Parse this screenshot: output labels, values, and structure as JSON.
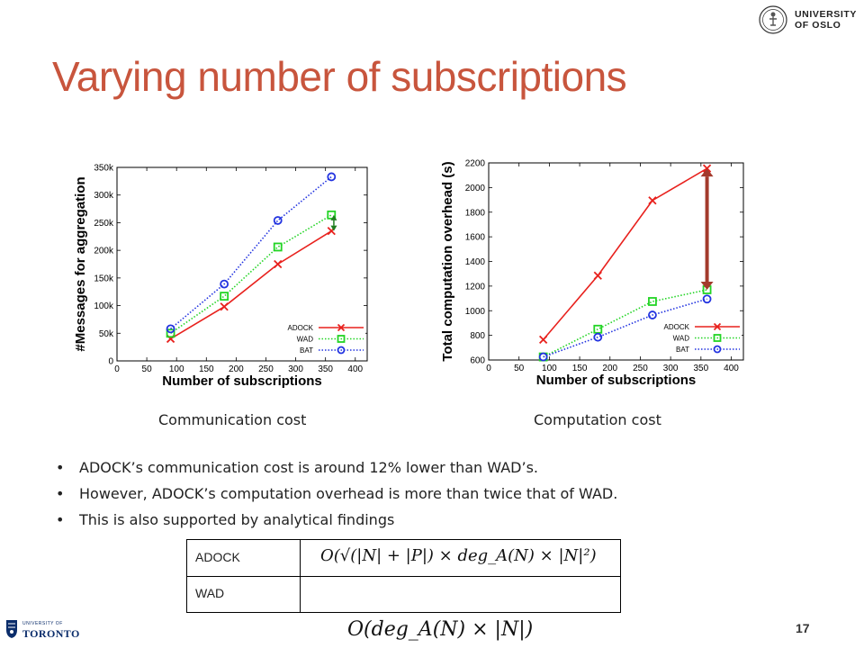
{
  "title": "Varying number of subscriptions",
  "oslo_logo": {
    "line1": "UNIVERSITY",
    "line2": "OF OSLO"
  },
  "toronto_logo": {
    "small": "UNIVERSITY OF",
    "big": "TORONTO"
  },
  "page_number": "17",
  "captions": {
    "communication": "Communication cost",
    "computation": "Computation cost"
  },
  "bullets": [
    "ADOCK’s communication cost is around 12% lower than WAD’s.",
    "However, ADOCK’s computation overhead is more than twice that of WAD.",
    "This is also supported by analytical findings"
  ],
  "formula_table": {
    "rows": [
      {
        "label": "ADOCK",
        "formula": "O(√(|N| + |P|) × deg_A(N) × |N|²)"
      },
      {
        "label": "WAD",
        "formula": "O(deg_A(N) × |N|)"
      }
    ]
  },
  "chart_data": [
    {
      "id": "communication",
      "type": "line",
      "xlabel": "Number of subscriptions",
      "ylabel": "#Messages for aggregation",
      "xlim": [
        0,
        420
      ],
      "ylim": [
        0,
        350000
      ],
      "xticks": [
        0,
        50,
        100,
        150,
        200,
        250,
        300,
        350,
        400
      ],
      "yticks": [
        0,
        50000,
        100000,
        150000,
        200000,
        250000,
        300000,
        350000
      ],
      "ytick_labels": [
        "0",
        "50k",
        "100k",
        "150k",
        "200k",
        "250k",
        "300k",
        "350k"
      ],
      "grid": false,
      "legend": "bottom-right",
      "series": [
        {
          "name": "ADOCK",
          "color": "#e8211d",
          "marker": "x",
          "dash": "solid",
          "x": [
            90,
            180,
            270,
            360
          ],
          "y": [
            40000,
            98000,
            175000,
            235000
          ]
        },
        {
          "name": "WAD",
          "color": "#22d424",
          "marker": "square",
          "dash": "dotted",
          "x": [
            90,
            180,
            270,
            360
          ],
          "y": [
            50000,
            117000,
            206000,
            264000
          ]
        },
        {
          "name": "BAT",
          "color": "#2233e0",
          "marker": "circle",
          "dash": "dotted",
          "x": [
            90,
            180,
            270,
            360
          ],
          "y": [
            58000,
            139000,
            254000,
            333000
          ]
        }
      ],
      "annotation": {
        "type": "double-arrow",
        "color": "#1e7d1e",
        "x": 364,
        "y_from": 235000,
        "y_to": 264000
      }
    },
    {
      "id": "computation",
      "type": "line",
      "xlabel": "Number of subscriptions",
      "ylabel": "Total computation overhead (s)",
      "xlim": [
        0,
        420
      ],
      "ylim": [
        600,
        2200
      ],
      "xticks": [
        0,
        50,
        100,
        150,
        200,
        250,
        300,
        350,
        400
      ],
      "yticks": [
        600,
        800,
        1000,
        1200,
        1400,
        1600,
        1800,
        2000,
        2200
      ],
      "ytick_labels": [
        "600",
        "800",
        "1000",
        "1200",
        "1400",
        "1600",
        "1800",
        "2000",
        "2200"
      ],
      "grid": false,
      "legend": "bottom-right",
      "series": [
        {
          "name": "ADOCK",
          "color": "#e8211d",
          "marker": "x",
          "dash": "solid",
          "x": [
            90,
            180,
            270,
            360
          ],
          "y": [
            765,
            1285,
            1895,
            2155
          ]
        },
        {
          "name": "WAD",
          "color": "#22d424",
          "marker": "square",
          "dash": "dotted",
          "x": [
            90,
            180,
            270,
            360
          ],
          "y": [
            625,
            850,
            1075,
            1170
          ]
        },
        {
          "name": "BAT",
          "color": "#2233e0",
          "marker": "circle",
          "dash": "dotted",
          "x": [
            90,
            180,
            270,
            360
          ],
          "y": [
            625,
            785,
            965,
            1095
          ]
        }
      ],
      "annotation": {
        "type": "double-arrow",
        "color": "#a33a2c",
        "x": 360,
        "y_from": 1170,
        "y_to": 2155
      }
    }
  ]
}
